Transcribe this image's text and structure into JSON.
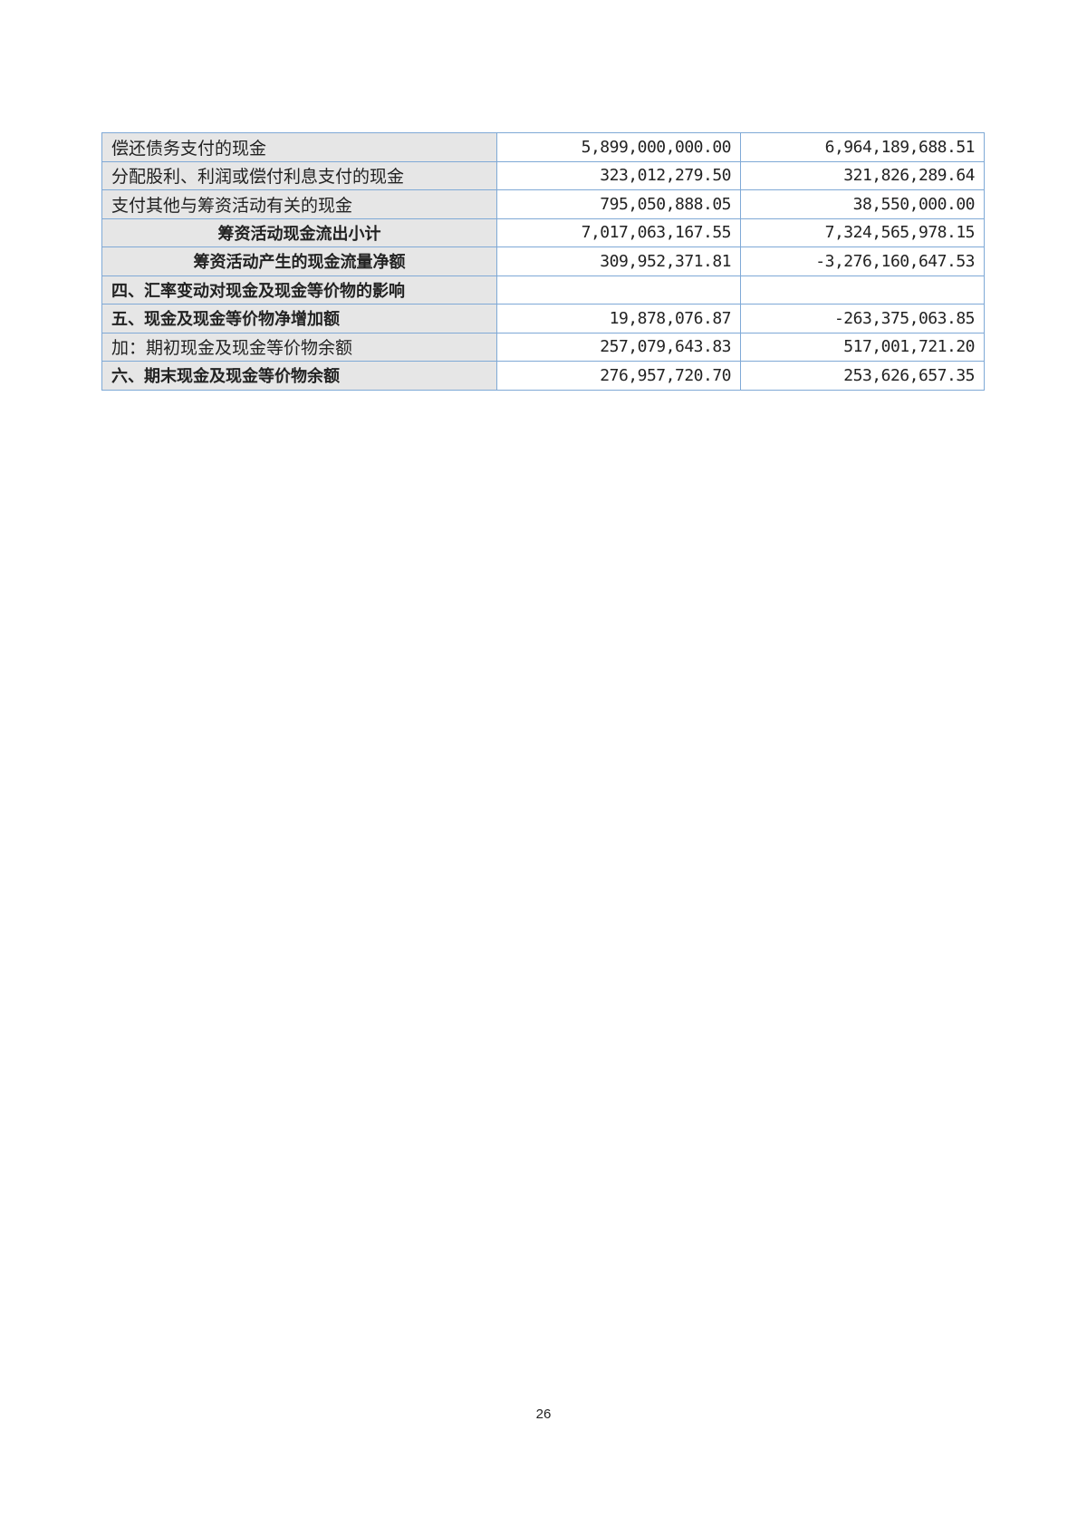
{
  "rows": [
    {
      "label": "偿还债务支付的现金",
      "current": "5,899,000,000.00",
      "previous": "6,964,189,688.51",
      "style": "normal"
    },
    {
      "label": "分配股利、利润或偿付利息支付的现金",
      "current": "323,012,279.50",
      "previous": "321,826,289.64",
      "style": "normal"
    },
    {
      "label": "支付其他与筹资活动有关的现金",
      "current": "795,050,888.05",
      "previous": "38,550,000.00",
      "style": "normal"
    },
    {
      "label": "筹资活动现金流出小计",
      "current": "7,017,063,167.55",
      "previous": "7,324,565,978.15",
      "style": "bold-center"
    },
    {
      "label": "筹资活动产生的现金流量净额",
      "current": "309,952,371.81",
      "previous": "-3,276,160,647.53",
      "style": "bold-center"
    },
    {
      "label": "四、汇率变动对现金及现金等价物的影响",
      "current": "",
      "previous": "",
      "style": "bold"
    },
    {
      "label": "五、现金及现金等价物净增加额",
      "current": "19,878,076.87",
      "previous": "-263,375,063.85",
      "style": "bold"
    },
    {
      "label": "加：期初现金及现金等价物余额",
      "current": "257,079,643.83",
      "previous": "517,001,721.20",
      "style": "normal"
    },
    {
      "label": "六、期末现金及现金等价物余额",
      "current": "276,957,720.70",
      "previous": "253,626,657.35",
      "style": "bold"
    }
  ],
  "page_number": "26",
  "colors": {
    "border": "#7fa9d6",
    "label_bg": "#e6e6e6"
  }
}
